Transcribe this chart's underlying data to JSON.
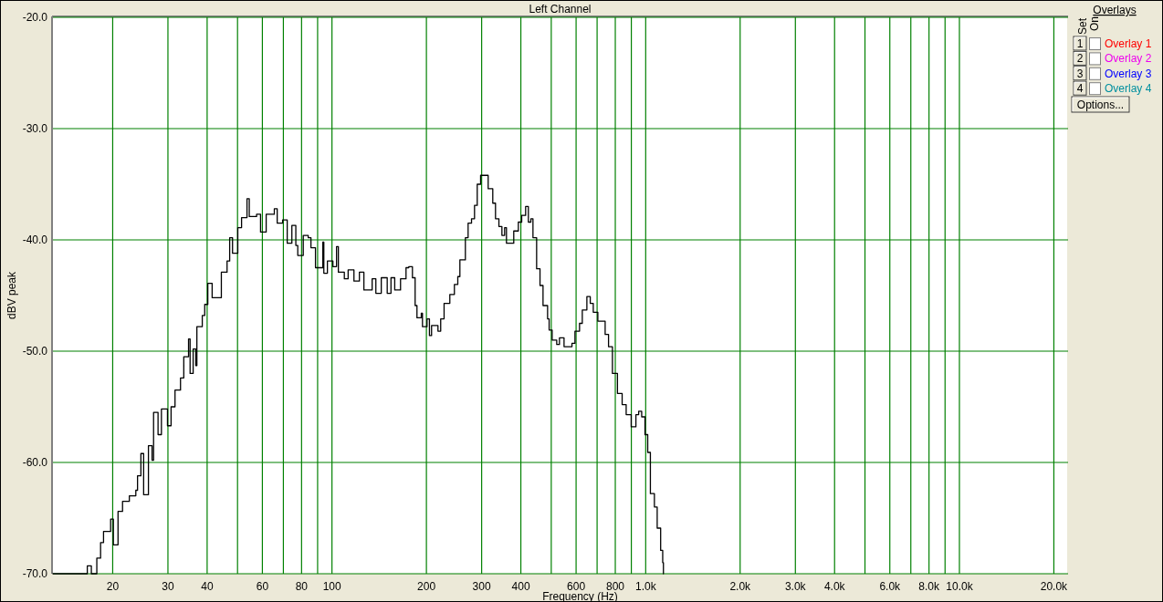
{
  "chart_data": {
    "type": "step",
    "title": "Left Channel",
    "xlabel": "Frequency (Hz)",
    "ylabel": "dBV peak",
    "log": "x",
    "grid": true,
    "xlim": [
      12.9,
      22050
    ],
    "ylim": [
      -70,
      -20
    ],
    "xticks": [
      20,
      30,
      40,
      {
        "value": 50,
        "label": null
      },
      60,
      {
        "value": 70,
        "label": null
      },
      80,
      {
        "value": 90,
        "label": null
      },
      100,
      200,
      300,
      400,
      {
        "value": 500,
        "label": null
      },
      600,
      {
        "value": 700,
        "label": null
      },
      800,
      {
        "value": 900,
        "label": null
      },
      {
        "value": 1000,
        "label": "1.0k"
      },
      {
        "value": 2000,
        "label": "2.0k"
      },
      {
        "value": 3000,
        "label": "3.0k"
      },
      {
        "value": 4000,
        "label": "4.0k"
      },
      {
        "value": 5000,
        "label": null
      },
      {
        "value": 6000,
        "label": "6.0k"
      },
      {
        "value": 7000,
        "label": null
      },
      {
        "value": 8000,
        "label": "8.0k"
      },
      {
        "value": 9000,
        "label": null
      },
      {
        "value": 10000,
        "label": "10.0k"
      },
      {
        "value": 20000,
        "label": "20.0k"
      }
    ],
    "yticks": [
      {
        "value": -70,
        "label": "-70.0"
      },
      {
        "value": -60,
        "label": "-60.0"
      },
      {
        "value": -50,
        "label": "-50.0"
      },
      {
        "value": -40,
        "label": "-40.0"
      },
      {
        "value": -30,
        "label": "-30.0"
      },
      {
        "value": -20,
        "label": "-20.0"
      }
    ],
    "color": "#000000",
    "x": [
      12.9,
      16.5,
      16.6,
      17.1,
      17.8,
      18.3,
      18.7,
      19.7,
      20.1,
      20.8,
      21.5,
      22.6,
      23.7,
      24.0,
      24.6,
      25.1,
      26.0,
      26.7,
      27.0,
      27.9,
      28.6,
      29.9,
      30.7,
      31.6,
      32.9,
      33.7,
      34.9,
      35.3,
      36.1,
      36.8,
      37.1,
      38.6,
      39.3,
      40.2,
      41.5,
      44.4,
      46.3,
      47.2,
      48.2,
      50.1,
      51.5,
      53.6,
      54.5,
      57.5,
      59.2,
      61.7,
      65.5,
      66.9,
      69.6,
      72.0,
      74.5,
      76.7,
      77.8,
      81.0,
      84.0,
      85.7,
      88.6,
      93.5,
      94.2,
      96.7,
      100.7,
      103.4,
      104.8,
      109.5,
      112.6,
      117.5,
      122.3,
      126.4,
      134.3,
      138.0,
      143.6,
      150.0,
      154.2,
      158.5,
      165.4,
      172.2,
      175.7,
      180.5,
      184.1,
      186.6,
      192.6,
      194.3,
      200.9,
      204.5,
      207.7,
      217.7,
      222.1,
      227.7,
      237.5,
      245.6,
      251.8,
      255.7,
      266.2,
      271.6,
      278.5,
      284.7,
      290.4,
      297.7,
      307.8,
      314.7,
      325.5,
      332.1,
      340.5,
      348.1,
      355.1,
      359.9,
      372.2,
      379.7,
      392.7,
      402.5,
      414.3,
      422.7,
      430.5,
      437.2,
      449.1,
      460.4,
      470.7,
      486.7,
      492.3,
      503.3,
      520.5,
      531,
      549.2,
      582.1,
      595.1,
      615.4,
      627.9,
      649.4,
      665.7,
      680.6,
      703.8,
      718.1,
      742.6,
      761.3,
      783.4,
      812.8,
      841.3,
      866.5,
      899,
      930.7,
      949.7,
      971,
      994.7,
      1015,
      1035,
      1066,
      1088,
      1116,
      1133,
      1139
    ],
    "values": [
      -70,
      -70,
      -69.3,
      -70,
      -68.6,
      -67.2,
      -66.2,
      -65.1,
      -67.4,
      -64.4,
      -63.5,
      -63.0,
      -62.5,
      -61.2,
      -59.2,
      -62.9,
      -58.5,
      -59.8,
      -55.5,
      -57.5,
      -55.2,
      -56.7,
      -55.0,
      -53.5,
      -52.4,
      -50.5,
      -48.9,
      -52.0,
      -49.8,
      -51.3,
      -47.8,
      -46.8,
      -45.8,
      -43.9,
      -45.2,
      -42.9,
      -41.9,
      -39.8,
      -41.2,
      -38.9,
      -38.0,
      -36.3,
      -37.9,
      -37.7,
      -39.3,
      -37.7,
      -37.2,
      -38.5,
      -38.2,
      -40.3,
      -38.7,
      -40.5,
      -41.4,
      -39.6,
      -39.8,
      -40.7,
      -42.5,
      -40.2,
      -43.0,
      -41.9,
      -42.4,
      -40.6,
      -42.9,
      -43.5,
      -42.7,
      -43.7,
      -42.9,
      -44.5,
      -43.5,
      -44.8,
      -43.4,
      -44.8,
      -43.4,
      -44.5,
      -43.5,
      -42.5,
      -42.4,
      -43.4,
      -45.9,
      -47.0,
      -46.6,
      -47.8,
      -47.1,
      -48.6,
      -47.7,
      -48.2,
      -47.1,
      -45.7,
      -44.9,
      -44.0,
      -43.3,
      -41.8,
      -39.8,
      -38.5,
      -38.1,
      -36.9,
      -35.0,
      -34.2,
      -34.2,
      -35.4,
      -36.7,
      -38.1,
      -38.8,
      -39.6,
      -38.9,
      -40.3,
      -40.3,
      -39.2,
      -38.4,
      -37.8,
      -37.0,
      -38.4,
      -38.1,
      -39.8,
      -42.6,
      -44.1,
      -45.9,
      -47.1,
      -48.1,
      -49.0,
      -49.4,
      -48.8,
      -49.6,
      -49.3,
      -48.2,
      -47.5,
      -46.3,
      -45.1,
      -45.7,
      -46.5,
      -47.3,
      -47.3,
      -48.5,
      -49.6,
      -52.0,
      -53.8,
      -54.8,
      -55.7,
      -56.8,
      -55.7,
      -55.4,
      -55.9,
      -57.5,
      -59.1,
      -62.8,
      -64.0,
      -65.9,
      -67.9,
      -69.0,
      -70.0
    ],
    "annotations": [
      "Overlays",
      "Set",
      "On",
      "1",
      "Overlay 1",
      "2",
      "Overlay 2",
      "3",
      "Overlay 3",
      "4",
      "Overlay 4",
      "Options..."
    ]
  }
}
